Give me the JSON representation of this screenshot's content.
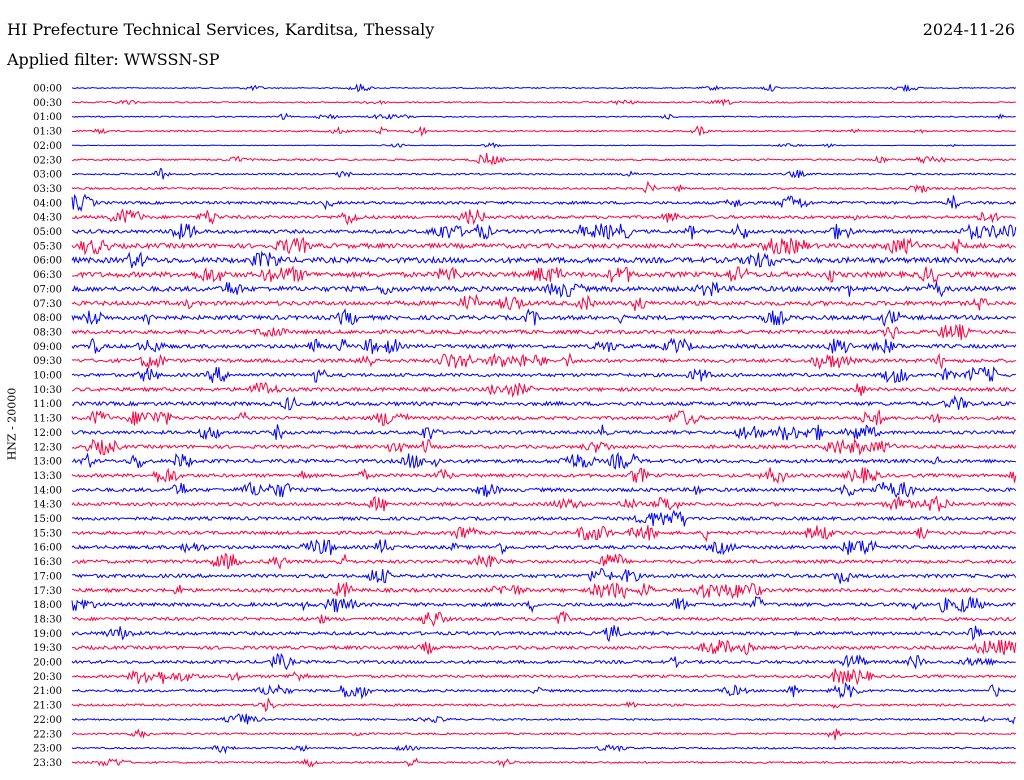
{
  "header": {
    "title": "HI Prefecture Technical Services, Karditsa, Thessaly",
    "date": "2024-11-26",
    "filter": "Applied filter: WWSSN-SP"
  },
  "chart_data": {
    "type": "line",
    "title": "HI Prefecture Technical Services, Karditsa, Thessaly",
    "ylabel": "HNZ - 20000",
    "xlabel": "",
    "rows": [
      "00:00",
      "00:30",
      "01:00",
      "01:30",
      "02:00",
      "02:30",
      "03:00",
      "03:30",
      "04:00",
      "04:30",
      "05:00",
      "05:30",
      "06:00",
      "06:30",
      "07:00",
      "07:30",
      "08:00",
      "08:30",
      "09:00",
      "09:30",
      "10:00",
      "10:30",
      "11:00",
      "11:30",
      "12:00",
      "12:30",
      "13:00",
      "13:30",
      "14:00",
      "14:30",
      "15:00",
      "15:30",
      "16:00",
      "16:30",
      "17:00",
      "17:30",
      "18:00",
      "18:30",
      "19:00",
      "19:30",
      "20:00",
      "20:30",
      "21:00",
      "21:30",
      "22:00",
      "22:30",
      "23:00",
      "23:30"
    ],
    "row_colors": [
      "#0000ff",
      "#ff0040"
    ],
    "amplitude": [
      1,
      1.2,
      1,
      1.3,
      0.6,
      1.6,
      1.5,
      1.8,
      2.5,
      2.8,
      3.2,
      4.2,
      4.8,
      4.6,
      4.4,
      3.8,
      3.8,
      3.4,
      3.4,
      3.2,
      3,
      3.2,
      3.4,
      3,
      3,
      3,
      3.2,
      3,
      3.2,
      3,
      3,
      3,
      3,
      3,
      3.2,
      3.2,
      3.2,
      3,
      3,
      3,
      2.8,
      2.4,
      2.2,
      2,
      1.6,
      1.6,
      1.4,
      1.6
    ],
    "grid": false
  }
}
